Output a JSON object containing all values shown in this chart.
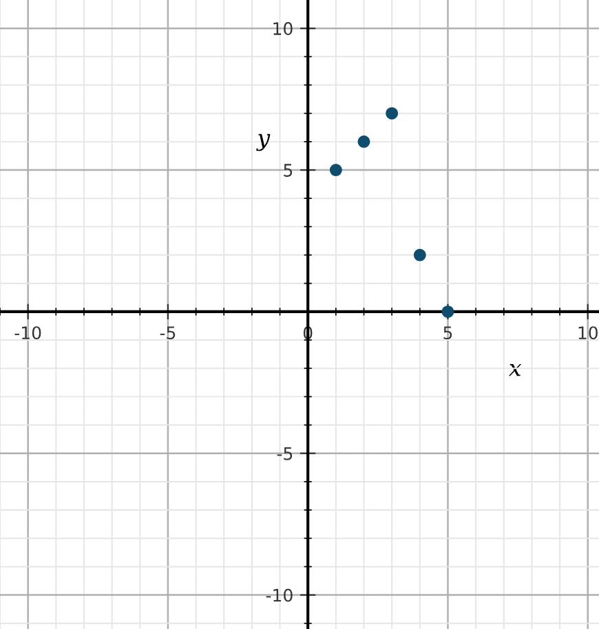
{
  "chart_data": {
    "type": "scatter",
    "xlabel": "x",
    "ylabel": "y",
    "x": [
      1,
      2,
      3,
      4,
      5
    ],
    "series": [
      {
        "color": "#0e4d6e",
        "values": [
          5,
          6,
          7,
          2,
          0
        ]
      }
    ],
    "xlim": [
      -11,
      10.4
    ],
    "ylim": [
      -11.2,
      11
    ],
    "xticks": [
      -10,
      -5,
      0,
      5,
      10
    ],
    "yticks": [
      -10,
      -5,
      5,
      10
    ],
    "grid": true,
    "marker": "circle",
    "legend": false
  }
}
